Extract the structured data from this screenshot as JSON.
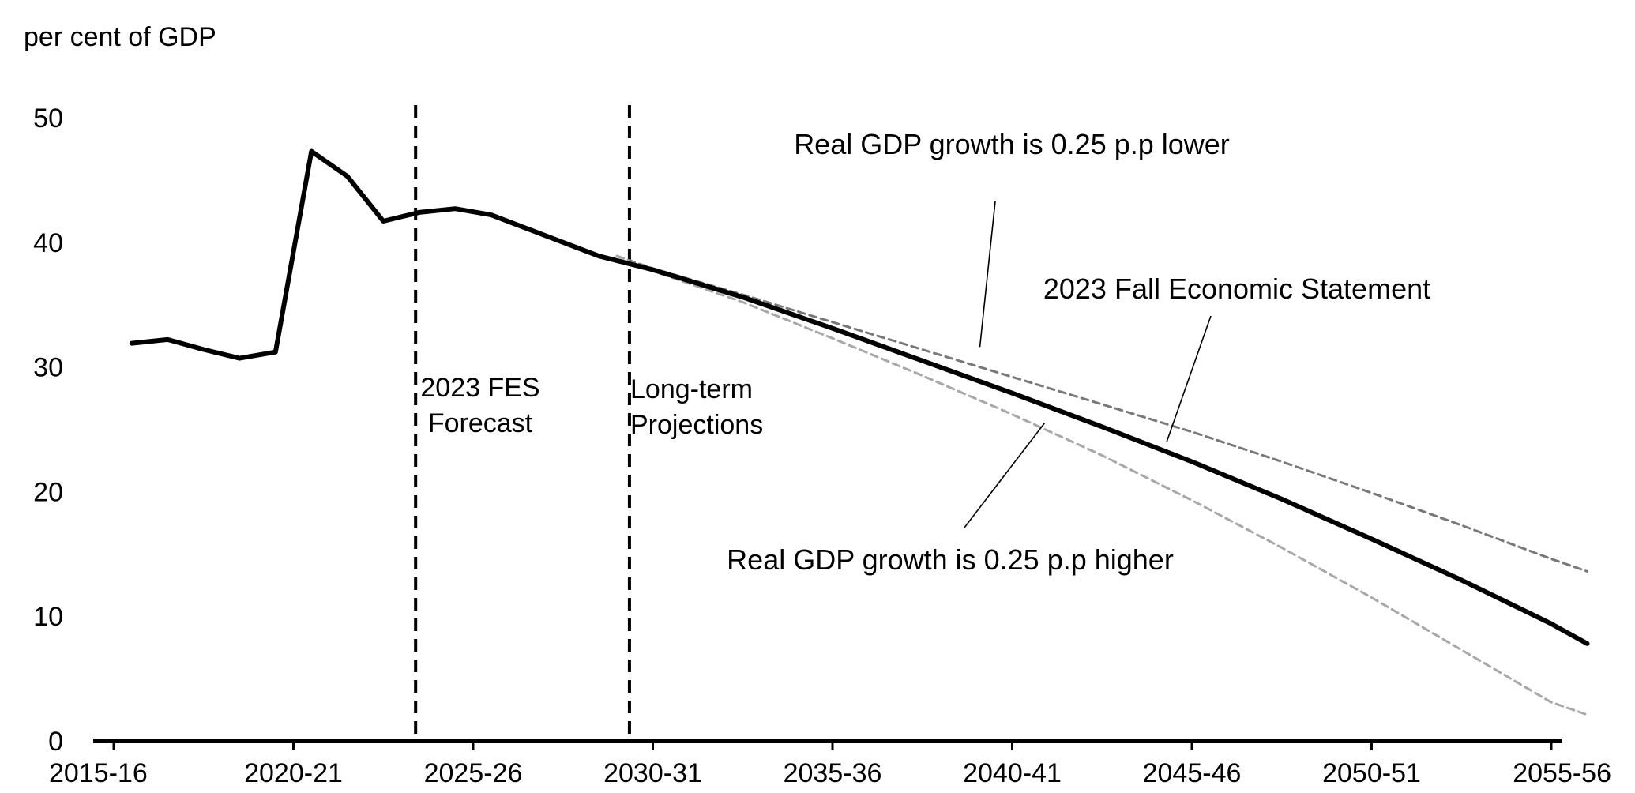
{
  "chart_data": {
    "type": "line",
    "ylabel": "per cent of GDP",
    "ylim": [
      0,
      50
    ],
    "yticks": [
      "0",
      "10",
      "20",
      "30",
      "40",
      "50"
    ],
    "xticks": [
      "2015-16",
      "2020-21",
      "2025-26",
      "2030-31",
      "2035-36",
      "2040-41",
      "2045-46",
      "2050-51",
      "2055-56"
    ],
    "xlim_start_year": 2015,
    "xlim_end_year": 2056,
    "grid": false,
    "legend": "none",
    "dividers": [
      {
        "year": 2023.4
      },
      {
        "year": 2029.35
      }
    ],
    "regions": [
      {
        "label": [
          "2023 FES",
          "Forecast"
        ]
      },
      {
        "label": [
          "Long-term",
          "Projections"
        ]
      }
    ],
    "series": [
      {
        "name": "2023 Fall Economic Statement",
        "color": "#000000",
        "style": "solid",
        "points": [
          [
            2015.5,
            31.9
          ],
          [
            2016.5,
            32.2
          ],
          [
            2017.5,
            31.4
          ],
          [
            2018.5,
            30.7
          ],
          [
            2019.5,
            31.2
          ],
          [
            2020.5,
            47.3
          ],
          [
            2021.5,
            45.3
          ],
          [
            2022.5,
            41.7
          ],
          [
            2023.5,
            42.4
          ],
          [
            2024.5,
            42.7
          ],
          [
            2025.5,
            42.2
          ],
          [
            2026.5,
            41.1
          ],
          [
            2027.5,
            40.0
          ],
          [
            2028.5,
            38.9
          ],
          [
            2030.0,
            37.8
          ],
          [
            2032.5,
            35.6
          ],
          [
            2035.0,
            33.1
          ],
          [
            2037.5,
            30.5
          ],
          [
            2040.0,
            27.9
          ],
          [
            2042.5,
            25.2
          ],
          [
            2045.0,
            22.4
          ],
          [
            2047.5,
            19.4
          ],
          [
            2050.0,
            16.2
          ],
          [
            2052.5,
            12.9
          ],
          [
            2055.0,
            9.4
          ],
          [
            2056.0,
            7.8
          ]
        ]
      },
      {
        "name": "Real GDP growth is 0.25 p.p lower",
        "color": "#787878",
        "style": "dashed",
        "points": [
          [
            2029.0,
            38.9
          ],
          [
            2030.0,
            37.9
          ],
          [
            2032.5,
            35.8
          ],
          [
            2035.0,
            33.6
          ],
          [
            2037.5,
            31.4
          ],
          [
            2040.0,
            29.2
          ],
          [
            2042.5,
            27.0
          ],
          [
            2045.0,
            24.8
          ],
          [
            2047.5,
            22.4
          ],
          [
            2050.0,
            19.9
          ],
          [
            2052.5,
            17.3
          ],
          [
            2055.0,
            14.6
          ],
          [
            2056.0,
            13.6
          ]
        ]
      },
      {
        "name": "Real GDP growth is 0.25 p.p higher",
        "color": "#a8a8a8",
        "style": "dashed",
        "points": [
          [
            2029.0,
            38.9
          ],
          [
            2030.0,
            37.7
          ],
          [
            2032.5,
            35.2
          ],
          [
            2035.0,
            32.3
          ],
          [
            2037.5,
            29.3
          ],
          [
            2040.0,
            26.2
          ],
          [
            2042.5,
            22.9
          ],
          [
            2045.0,
            19.3
          ],
          [
            2047.5,
            15.5
          ],
          [
            2050.0,
            11.5
          ],
          [
            2052.5,
            7.3
          ],
          [
            2055.0,
            3.1
          ],
          [
            2056.0,
            2.1
          ]
        ]
      }
    ],
    "annotations": [
      {
        "text": "Real GDP growth is 0.25 p.p lower",
        "pointer": [
          2039.1,
          31.6
        ]
      },
      {
        "text": "2023 Fall Economic Statement",
        "pointer": [
          2044.3,
          24.0
        ]
      },
      {
        "text": "Real GDP growth is 0.25 p.p higher",
        "pointer": [
          2040.9,
          25.5
        ]
      }
    ]
  }
}
